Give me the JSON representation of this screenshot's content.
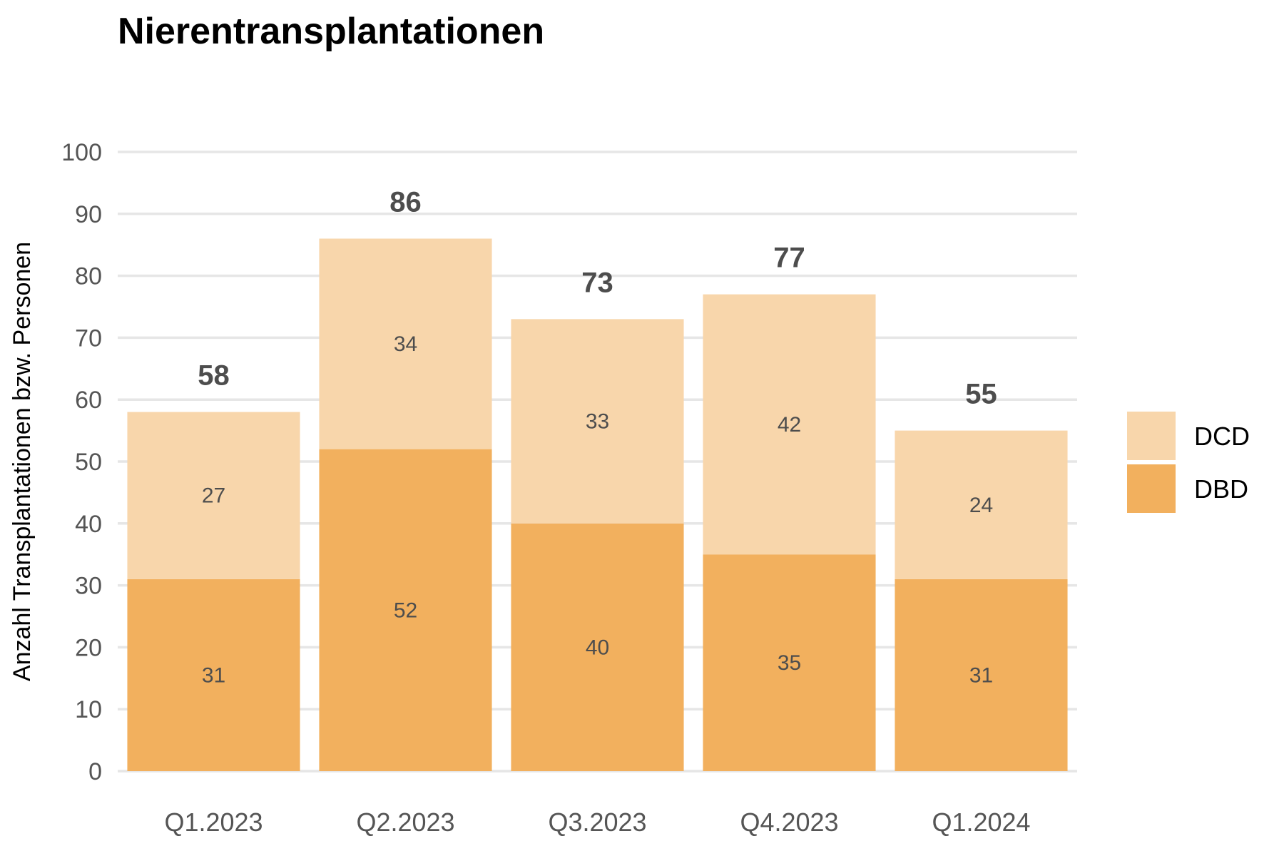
{
  "chart_data": {
    "type": "bar",
    "stacked": true,
    "title": "Nierentransplantationen",
    "xlabel": "",
    "ylabel": "Anzahl Transplantationen bzw. Personen",
    "categories": [
      "Q1.2023",
      "Q2.2023",
      "Q3.2023",
      "Q4.2023",
      "Q1.2024"
    ],
    "series": [
      {
        "name": "DBD",
        "values": [
          31,
          52,
          40,
          35,
          31
        ],
        "color": "#F2B05E"
      },
      {
        "name": "DCD",
        "values": [
          27,
          34,
          33,
          42,
          24
        ],
        "color": "#F8D6AB"
      }
    ],
    "totals": [
      58,
      86,
      73,
      77,
      55
    ],
    "ylim": [
      0,
      100
    ],
    "yticks": [
      0,
      10,
      20,
      30,
      40,
      50,
      60,
      70,
      80,
      90,
      100
    ],
    "grid": "horizontal",
    "legend_position": "right",
    "legend_order": [
      "DCD",
      "DBD"
    ]
  }
}
